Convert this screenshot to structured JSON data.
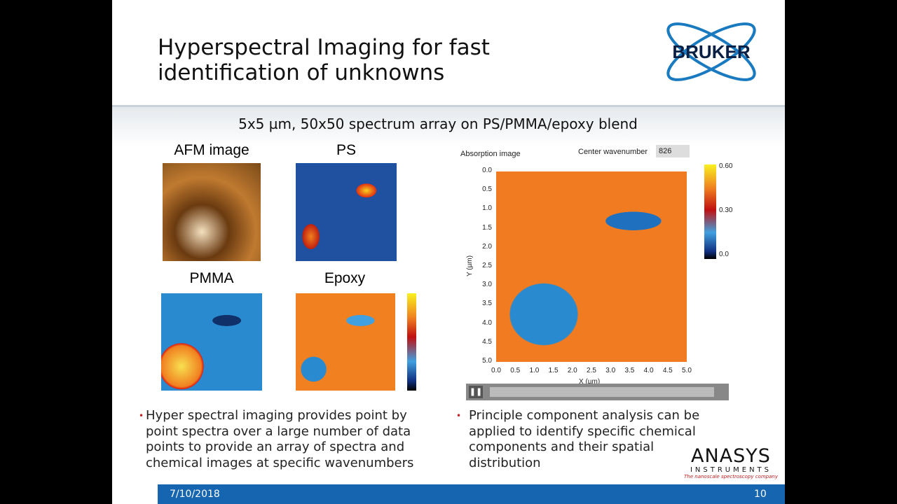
{
  "header": {
    "title_lines": [
      "Hyperspectral Imaging for fast",
      "identification of unknowns"
    ],
    "logo": "BRUKER"
  },
  "subtitle": "5x5 µm, 50x50 spectrum array on PS/PMMA/epoxy blend",
  "panels": [
    "AFM image",
    "PS",
    "PMMA",
    "Epoxy"
  ],
  "viewer": {
    "title": "Absorption image",
    "wavenumber_label": "Center wavenumber",
    "wavenumber": "826",
    "yticks": [
      "0.0",
      "0.5",
      "1.0",
      "1.5",
      "2.0",
      "2.5",
      "3.0",
      "3.5",
      "4.0",
      "4.5",
      "5.0"
    ],
    "xticks": [
      "0.0",
      "0.5",
      "1.0",
      "1.5",
      "2.0",
      "2.5",
      "3.0",
      "3.5",
      "4.0",
      "4.5",
      "5.0"
    ],
    "ylabel": "Y (µm)",
    "xlabel": "X (µm)",
    "colorbar": [
      "0.60",
      "0.30",
      "0.0"
    ]
  },
  "bullets": [
    [
      "Hyper spectral imaging provides point by",
      "point spectra over a large number of data",
      "points to provide an array of spectra and",
      "chemical images at specific wavenumbers"
    ],
    [
      "Principle component analysis can be",
      "applied to identify specific chemical",
      "components and their spatial",
      "distribution"
    ]
  ],
  "footer": {
    "logo": "ANASYS",
    "logo_sub": "INSTRUMENTS",
    "tagline": "The nanoscale spectroscopy company",
    "date": "7/10/2018",
    "page": "10"
  }
}
